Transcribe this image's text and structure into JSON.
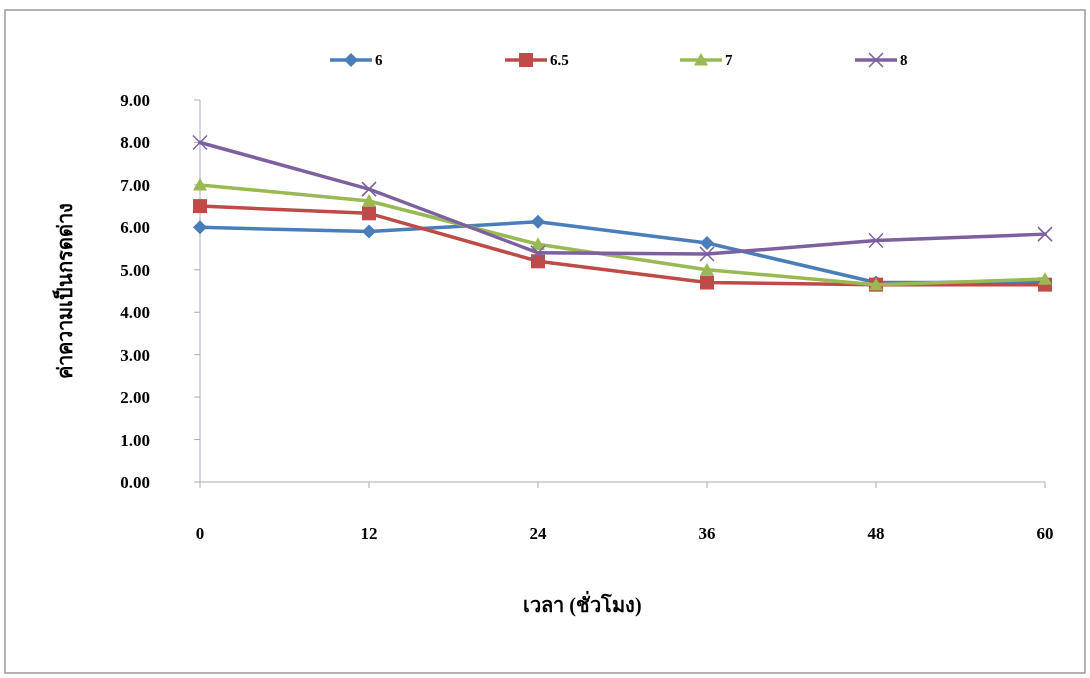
{
  "chart_data": {
    "type": "line",
    "xlabel": "เวลา (ชั่วโมง)",
    "ylabel": "ค่าความเป็นกรดด่าง",
    "x": [
      0,
      12,
      24,
      36,
      48,
      60
    ],
    "series": [
      {
        "name": "6",
        "color": "#4a7ebb",
        "marker": "diamond",
        "values": [
          6.0,
          5.9,
          6.13,
          5.63,
          4.7,
          4.7
        ]
      },
      {
        "name": "6.5",
        "color": "#be4b48",
        "marker": "square",
        "values": [
          6.5,
          6.33,
          5.2,
          4.7,
          4.65,
          4.65
        ]
      },
      {
        "name": "7",
        "color": "#98b954",
        "marker": "triangle",
        "values": [
          7.0,
          6.62,
          5.6,
          5.0,
          4.65,
          4.78
        ]
      },
      {
        "name": "8",
        "color": "#7d60a0",
        "marker": "cross",
        "values": [
          8.0,
          6.9,
          5.4,
          5.37,
          5.69,
          5.84
        ]
      }
    ],
    "xlim": [
      0,
      60
    ],
    "xticks": [
      0,
      12,
      24,
      36,
      48,
      60
    ],
    "ylim": [
      0,
      9
    ],
    "yticks": [
      {
        "value": 0,
        "label": "0.00"
      },
      {
        "value": 1,
        "label": "1.00"
      },
      {
        "value": 2,
        "label": "2.00"
      },
      {
        "value": 3,
        "label": "3.00"
      },
      {
        "value": 4,
        "label": "4.00"
      },
      {
        "value": 5,
        "label": "5.00"
      },
      {
        "value": 6,
        "label": "6.00"
      },
      {
        "value": 7,
        "label": "7.00"
      },
      {
        "value": 8,
        "label": "8.00"
      },
      {
        "value": 9,
        "label": "9.00"
      }
    ],
    "grid": false,
    "legend": "top",
    "line_style": "solid"
  }
}
